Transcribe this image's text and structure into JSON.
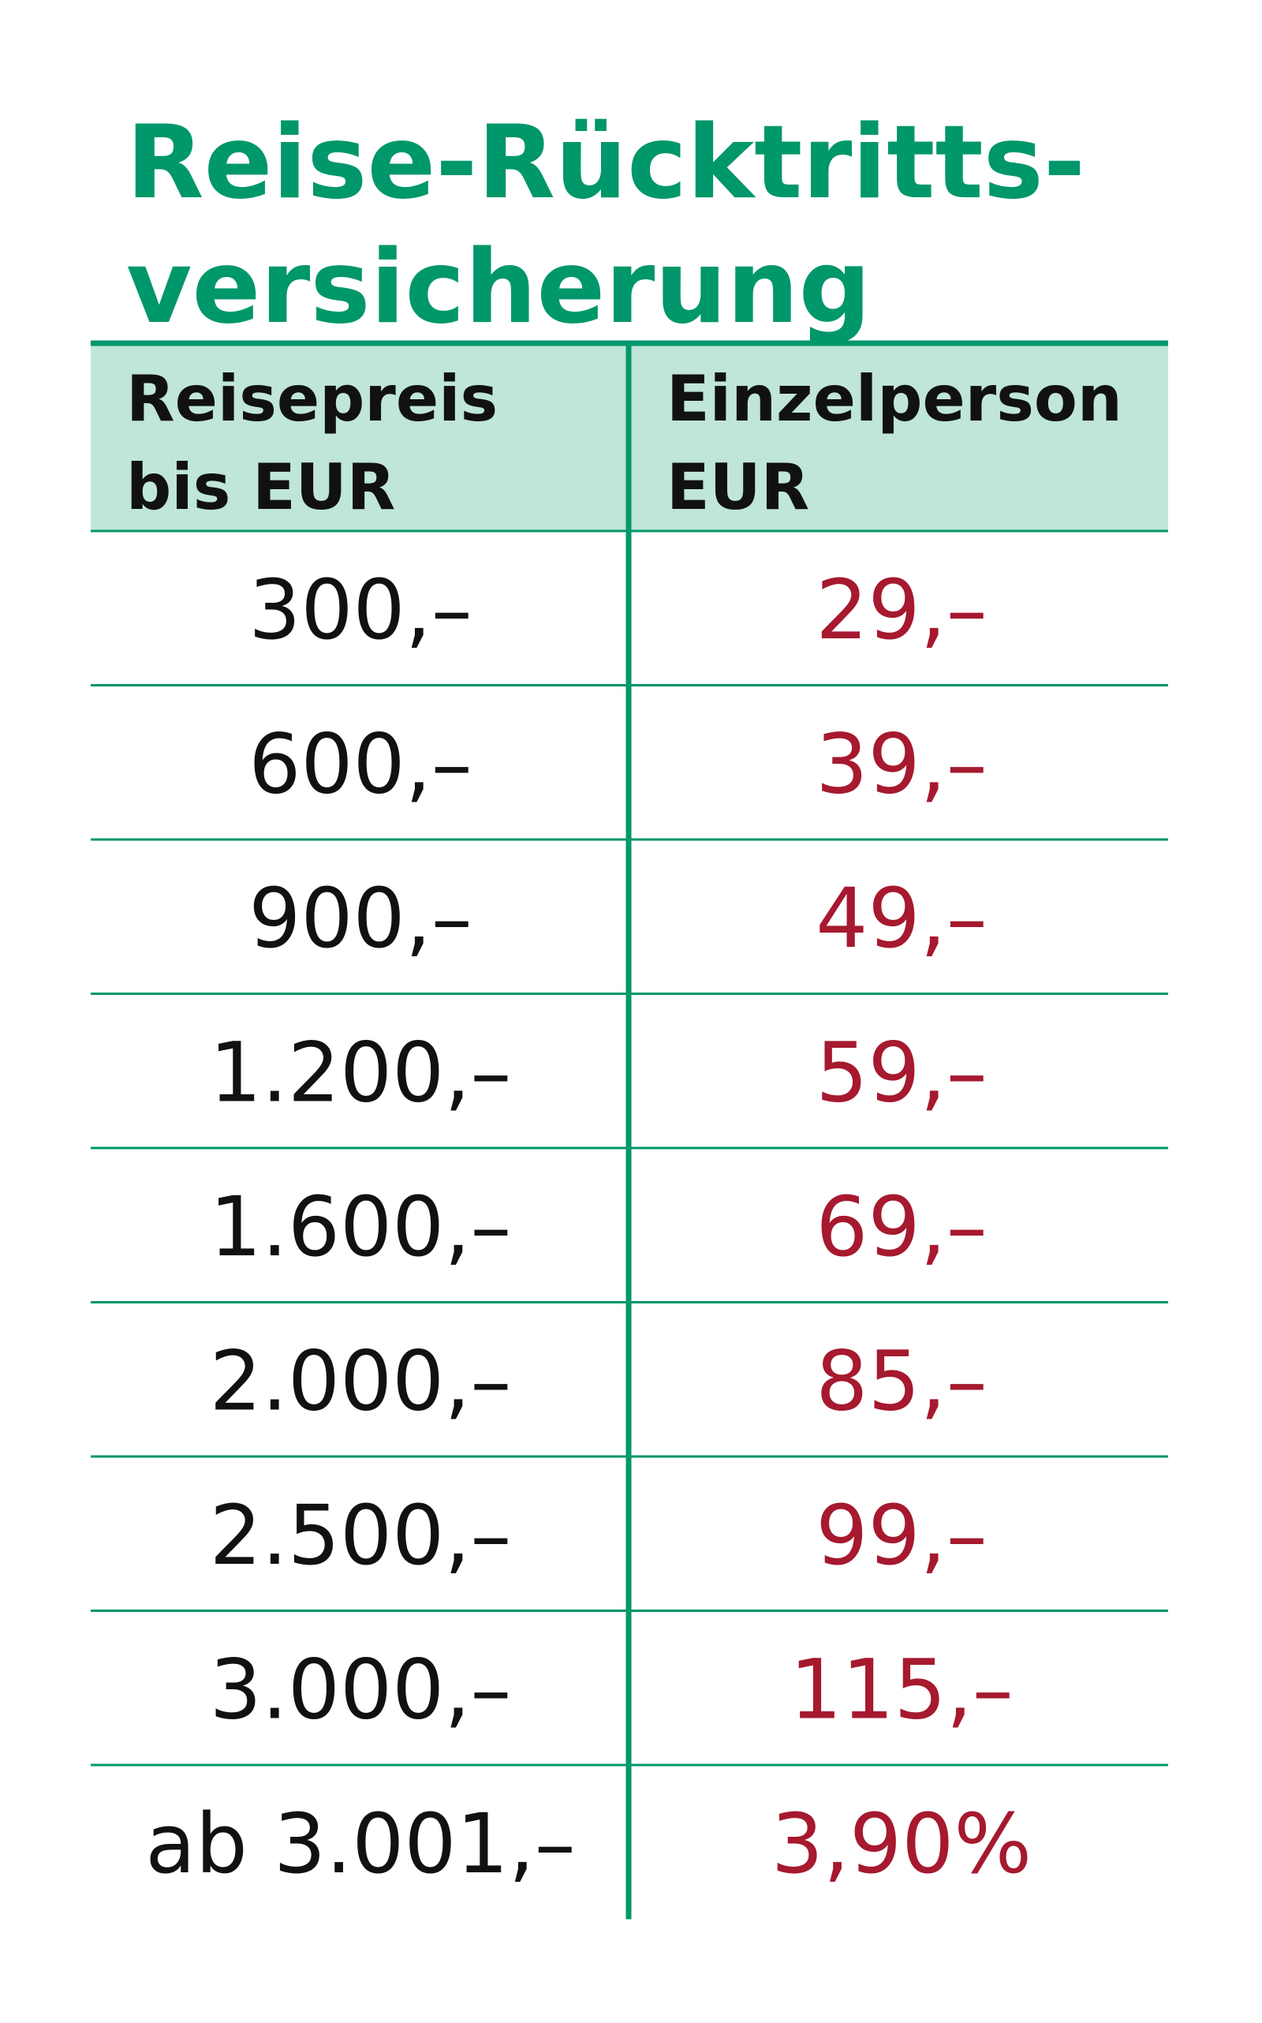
{
  "title": {
    "lines": [
      "Reise-Rücktritts-",
      "versicherung"
    ]
  },
  "table": {
    "header": [
      [
        "Reisepreis",
        "bis EUR"
      ],
      [
        "Einzelperson",
        "EUR"
      ]
    ],
    "rows": [
      [
        "300,–",
        "29,–"
      ],
      [
        "600,–",
        "39,–"
      ],
      [
        "900,–",
        "49,–"
      ],
      [
        "1.200,–",
        "59,–"
      ],
      [
        "1.600,–",
        "69,–"
      ],
      [
        "2.000,–",
        "85,–"
      ],
      [
        "2.500,–",
        "99,–"
      ],
      [
        "3.000,–",
        "115,–"
      ],
      [
        "ab 3.001,–",
        "3,90%"
      ]
    ]
  }
}
